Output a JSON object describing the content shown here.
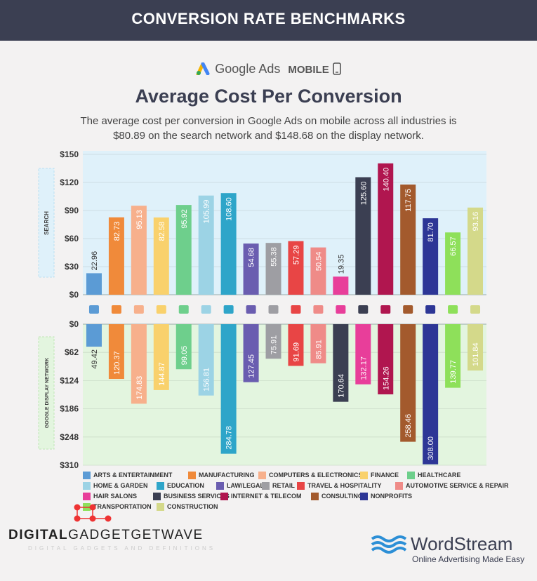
{
  "header": {
    "title": "CONVERSION RATE BENCHMARKS"
  },
  "subheader": {
    "brand": "Google Ads",
    "device": "MOBILE"
  },
  "headline": "Average Cost Per Conversion",
  "description_line1": "The average cost per conversion in Google Ads on mobile across all industries is",
  "description_line2": "$80.89 on the search network and $148.68 on the display network.",
  "watermark": {
    "bold": "DIGITAL",
    "rest": "GADGETGETWAVE",
    "sub": "DIGITAL GADGETS AND DEFINITIONS"
  },
  "wordstream": {
    "name": "WordStream",
    "tagline": "Online Advertising Made Easy"
  },
  "chart_data": {
    "type": "bar",
    "panels": [
      {
        "name": "SEARCH",
        "ylim": [
          0,
          150
        ],
        "ticks": [
          "$150",
          "$120",
          "$90",
          "$60",
          "$30",
          "$0"
        ],
        "direction": "up"
      },
      {
        "name": "GOOGLE DISPLAY NETWORK",
        "ylim": [
          0,
          310
        ],
        "ticks": [
          "$0",
          "$62",
          "$124",
          "$186",
          "$248",
          "$310"
        ],
        "direction": "down"
      }
    ],
    "categories": [
      "ARTS & ENTERTAINMENT",
      "MANUFACTURING",
      "COMPUTERS & ELECTRONICS",
      "FINANCE",
      "HEALTHCARE",
      "HOME & GARDEN",
      "EDUCATION",
      "LAW/LEGAL",
      "RETAIL",
      "TRAVEL & HOSPITALITY",
      "AUTOMOTIVE SERVICE & REPAIR",
      "HAIR SALONS",
      "BUSINESS SERVICES",
      "INTERNET & TELECOM",
      "CONSULTING",
      "NONPROFITS",
      "TRANSPORTATION",
      "CONSTRUCTION"
    ],
    "search_values": [
      "22.96",
      "82.73",
      "95.13",
      "82.58",
      "95.92",
      "105.99",
      "108.60",
      "54.68",
      "55.38",
      "57.29",
      "50.54",
      "19.35",
      "125.60",
      "140.40",
      "117.75",
      "81.70",
      "66.57",
      "93.16"
    ],
    "display_values": [
      "49.42",
      "120.37",
      "174.83",
      "144.87",
      "99.05",
      "156.81",
      "284.78",
      "127.45",
      "75.91",
      "91.69",
      "85.91",
      "170.64",
      "132.17",
      "154.26",
      "258.46",
      "308.00",
      "139.77",
      "101.84"
    ],
    "display_order": [
      0,
      1,
      2,
      3,
      4,
      5,
      6,
      7,
      8,
      9,
      10,
      12,
      11,
      13,
      14,
      15,
      16,
      17
    ],
    "colors": [
      "#5b9bd5",
      "#f08a3a",
      "#f7b08c",
      "#f9d16c",
      "#6ecf8c",
      "#9cd3e5",
      "#2ea5c9",
      "#6a5db0",
      "#9e9ea3",
      "#e84545",
      "#ef8b88",
      "#b0164f",
      "#3b3f52",
      "#b0164f",
      "#a35a2d",
      "#2d3696",
      "#8ee05a",
      "#d4d98a"
    ],
    "display_colors": [
      "#5b9bd5",
      "#f08a3a",
      "#f7b08c",
      "#f9d16c",
      "#6ecf8c",
      "#9cd3e5",
      "#2ea5c9",
      "#6a5db0",
      "#9e9ea3",
      "#e84545",
      "#ef8b88",
      "#3b3f52",
      "#e83e9a",
      "#b0164f",
      "#a35a2d",
      "#2d3696",
      "#8ee05a",
      "#d4d98a"
    ],
    "search_colors": [
      "#5b9bd5",
      "#f08a3a",
      "#f7b08c",
      "#f9d16c",
      "#6ecf8c",
      "#9cd3e5",
      "#2ea5c9",
      "#6a5db0",
      "#9e9ea3",
      "#e84545",
      "#ef8b88",
      "#e83e9a",
      "#3b3f52",
      "#b0164f",
      "#a35a2d",
      "#2d3696",
      "#8ee05a",
      "#d4d98a"
    ],
    "icons": [
      "image-icon",
      "factory-icon",
      "monitor-icon",
      "coins-icon",
      "medical-cross-icon",
      "flower-icon",
      "graduation-cap-icon",
      "gavel-icon",
      "storefront-icon",
      "airplane-icon",
      "car-icon",
      "hair-dryer-icon",
      "briefcase-icon",
      "globe-icon",
      "org-chart-icon",
      "heart-hand-icon",
      "truck-icon",
      "crane-icon"
    ],
    "legend": [
      {
        "label": "ARTS & ENTERTAINMENT",
        "color": "#5b9bd5"
      },
      {
        "label": "MANUFACTURING",
        "color": "#f08a3a"
      },
      {
        "label": "COMPUTERS & ELECTRONICS",
        "color": "#f7b08c"
      },
      {
        "label": "FINANCE",
        "color": "#f9d16c"
      },
      {
        "label": "HEALTHCARE",
        "color": "#6ecf8c"
      },
      {
        "label": "HOME & GARDEN",
        "color": "#9cd3e5"
      },
      {
        "label": "EDUCATION",
        "color": "#2ea5c9"
      },
      {
        "label": "LAW/LEGAL",
        "color": "#6a5db0"
      },
      {
        "label": "RETAIL",
        "color": "#9e9ea3"
      },
      {
        "label": "TRAVEL & HOSPITALITY",
        "color": "#e84545"
      },
      {
        "label": "AUTOMOTIVE SERVICE & REPAIR",
        "color": "#ef8b88"
      },
      {
        "label": "HAIR SALONS",
        "color": "#e83e9a"
      },
      {
        "label": "BUSINESS SERVICES",
        "color": "#3b3f52"
      },
      {
        "label": "INTERNET & TELECOM",
        "color": "#b0164f"
      },
      {
        "label": "CONSULTING",
        "color": "#a35a2d"
      },
      {
        "label": "NONPROFITS",
        "color": "#2d3696"
      },
      {
        "label": "TRANSPORTATION",
        "color": "#8ee05a"
      },
      {
        "label": "CONSTRUCTION",
        "color": "#d4d98a"
      }
    ]
  }
}
